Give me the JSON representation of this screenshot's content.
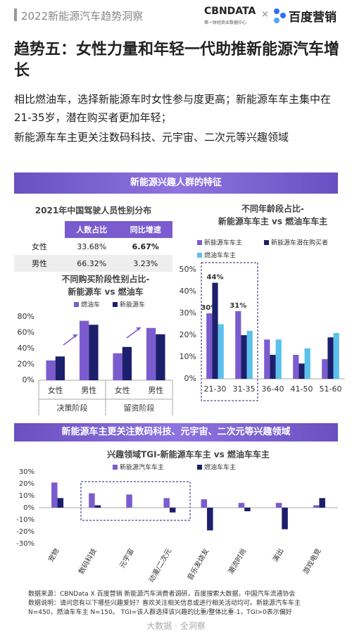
{
  "header": {
    "report": "2022新能源汽车趋势洞察",
    "brand1": "CBNDATA",
    "brand1_sub": "第一财经商业数据中心",
    "cross": "×",
    "brand2": "百度营销"
  },
  "title": "趋势五：女性力量和年轻一代助推新能源汽车增长",
  "body": [
    "相比燃油车，选择新能源车时女性参与度更高；新能源车车主集中在21-35岁，潜在购买者更加年轻；",
    "新能源车车主更关注数码科技、元宇宙、二次元等兴趣领域"
  ],
  "banners": [
    "新能源兴趣人群的特征",
    "新能源车主更关注数码科技、元宇宙、二次元等兴趣领域"
  ],
  "table": {
    "title": "2021年中国驾驶人员性别分布",
    "header": [
      "人数占比",
      "同比增速"
    ],
    "rows": [
      [
        "女性",
        "33.68%",
        "6.67%"
      ],
      [
        "男性",
        "66.32%",
        "3.23%"
      ]
    ]
  },
  "chart_data": [
    {
      "type": "bar",
      "title": [
        "不同购买阶段性别占比-",
        "新能源车 vs 燃油车"
      ],
      "categories": [
        "女性",
        "男性",
        "女性",
        "男性"
      ],
      "group_labels": [
        "决策阶段",
        "留资阶段"
      ],
      "series": [
        {
          "name": "燃油车",
          "color": "#7b5ccf",
          "values": [
            25,
            75,
            34,
            66
          ]
        },
        {
          "name": "新能源车",
          "color": "#1c1f6b",
          "values": [
            30,
            70,
            42,
            58
          ]
        }
      ],
      "ylim": [
        0,
        80
      ],
      "yticks": [
        {
          "value": 0,
          "label": "0%"
        },
        {
          "value": 20,
          "label": "20%"
        },
        {
          "value": 40,
          "label": "40%"
        },
        {
          "value": 60,
          "label": "60%"
        },
        {
          "value": 80,
          "label": "80%"
        }
      ],
      "grid": false,
      "legend": "top"
    },
    {
      "type": "bar",
      "title": [
        "不同年龄段占比-",
        "新能源车车主 vs 燃油车车主"
      ],
      "categories": [
        "21-30",
        "31-35",
        "36-40",
        "41-50",
        "51-60"
      ],
      "series": [
        {
          "name": "新能源车车主",
          "color": "#7b5ccf",
          "values": [
            30,
            31,
            18,
            11,
            9
          ],
          "value_labels": [
            "30%",
            "31%",
            null,
            null,
            null
          ]
        },
        {
          "name": "新能源车潜在购买者",
          "color": "#1c1f6b",
          "values": [
            44,
            20,
            11,
            7,
            19
          ],
          "value_labels": [
            "44%",
            null,
            null,
            null,
            null
          ]
        },
        {
          "name": "燃油车车主",
          "color": "#5bc0eb",
          "values": [
            25,
            22,
            18,
            14,
            21
          ]
        }
      ],
      "ylim": [
        0,
        50
      ],
      "yticks": [
        {
          "value": 0,
          "label": "0%"
        },
        {
          "value": 10,
          "label": "10%"
        },
        {
          "value": 20,
          "label": "20%"
        },
        {
          "value": 30,
          "label": "30%"
        },
        {
          "value": 40,
          "label": "40%"
        },
        {
          "value": 50,
          "label": "50%"
        }
      ],
      "grid": false,
      "legend": "top"
    },
    {
      "type": "bar",
      "title": [
        "兴趣领域TGI-新能源车车主 vs 燃油车车主"
      ],
      "categories": [
        "宠物",
        "数码科技",
        "元宇宙",
        "动漫/二次元",
        "音乐发烧友",
        "潮流时尚",
        "演出",
        "游戏电竞"
      ],
      "series": [
        {
          "name": "新能源汽车车主",
          "color": "#7b5ccf",
          "values": [
            21,
            12,
            11,
            8,
            7,
            4,
            4,
            2
          ]
        },
        {
          "name": "燃油车车主",
          "color": "#1c1f6b",
          "values": [
            8,
            2,
            null,
            -4,
            -19,
            -3,
            -18,
            8
          ]
        }
      ],
      "ylim": [
        -30,
        30
      ],
      "yticks": [
        {
          "value": -30,
          "label": "-30%"
        },
        {
          "value": -20,
          "label": "-20%"
        },
        {
          "value": -10,
          "label": "-10%"
        },
        {
          "value": 0,
          "label": "0%"
        },
        {
          "value": 10,
          "label": "10%"
        },
        {
          "value": 20,
          "label": "20%"
        },
        {
          "value": 30,
          "label": "30%"
        }
      ],
      "grid": false,
      "legend": "top"
    }
  ],
  "notes": [
    "数据来源：CBNData X 百度营销 新能源汽车消费者调研，百度搜索大数据，中国汽车流通协会",
    "数据说明：请问您有以下哪些兴趣爱好？喜欢关注相关信息或进行相关活动均可。新能源汽车车主 N=450，燃油车车主 N=150。 TGI=该人群选择该兴趣的比重/整体比重-1，TGI>0表示偏好"
  ],
  "footer": "大数据 · 全洞察"
}
